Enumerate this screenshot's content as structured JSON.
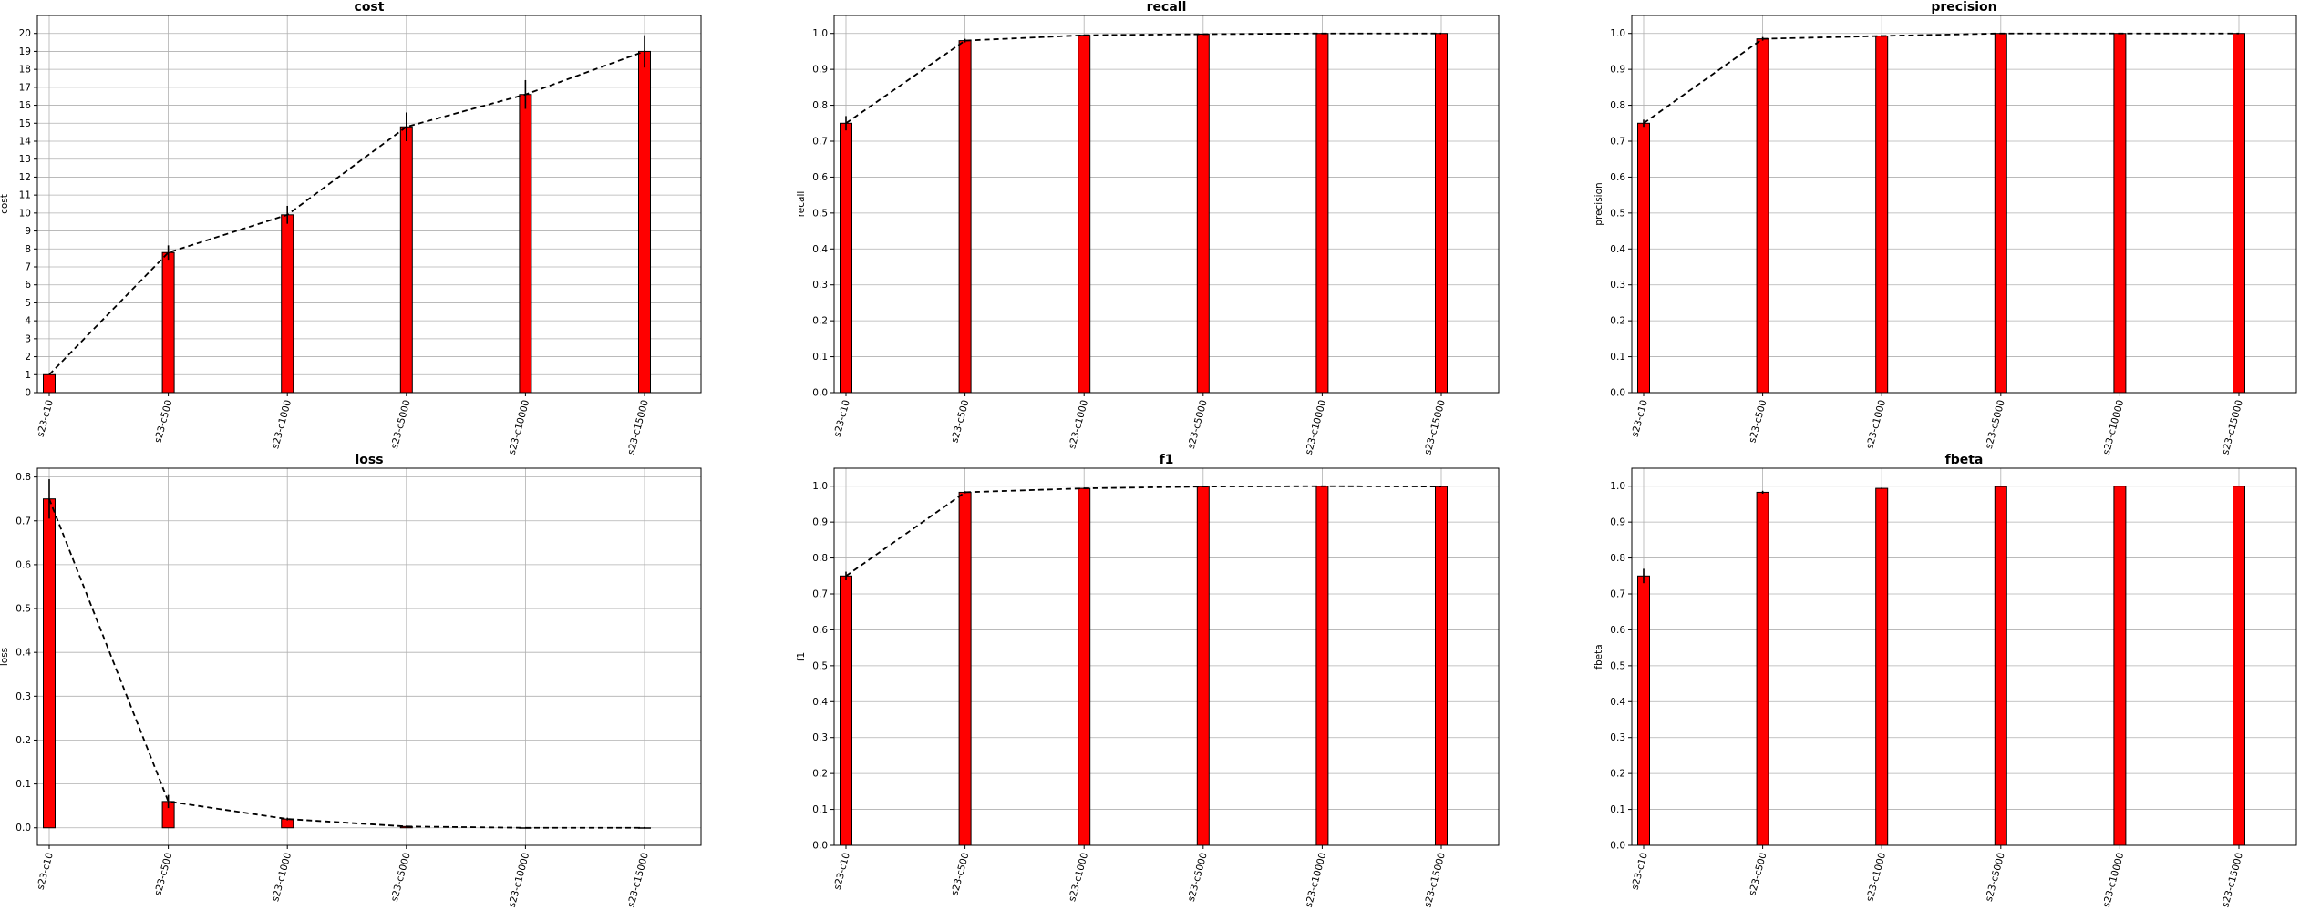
{
  "figure": {
    "categories": [
      "s23-c10",
      "s23-c500",
      "s23-c1000",
      "s23-c5000",
      "s23-c10000",
      "s23-c15000"
    ],
    "bar_color": "#ff0000",
    "line_color": "#000000",
    "grid_color": "#b0b0b0"
  },
  "chart_data": [
    {
      "type": "bar",
      "title": "cost",
      "xlabel": "",
      "ylabel": "cost",
      "categories": [
        "s23-c10",
        "s23-c500",
        "s23-c1000",
        "s23-c5000",
        "s23-c10000",
        "s23-c15000"
      ],
      "values": [
        1.0,
        7.8,
        9.9,
        14.8,
        16.6,
        19.0
      ],
      "errors": [
        0.0,
        0.4,
        0.5,
        0.8,
        0.8,
        0.9
      ],
      "ylim": [
        0,
        21
      ],
      "yticks": [
        0,
        1,
        2,
        3,
        4,
        5,
        6,
        7,
        8,
        9,
        10,
        11,
        12,
        13,
        14,
        15,
        16,
        17,
        18,
        19,
        20
      ],
      "ytick_labels": [
        "0",
        "1",
        "2",
        "3",
        "4",
        "5",
        "6",
        "7",
        "8",
        "9",
        "10",
        "11",
        "12",
        "13",
        "14",
        "15",
        "16",
        "17",
        "18",
        "19",
        "20"
      ],
      "trend_line": true,
      "grid": true
    },
    {
      "type": "bar",
      "title": "recall",
      "xlabel": "",
      "ylabel": "recall",
      "categories": [
        "s23-c10",
        "s23-c500",
        "s23-c1000",
        "s23-c5000",
        "s23-c10000",
        "s23-c15000"
      ],
      "values": [
        0.75,
        0.98,
        0.995,
        0.998,
        1.0,
        1.0
      ],
      "errors": [
        0.02,
        0.005,
        0.002,
        0.001,
        0.0,
        0.0
      ],
      "ylim": [
        0,
        1.05
      ],
      "yticks": [
        0,
        0.1,
        0.2,
        0.3,
        0.4,
        0.5,
        0.6,
        0.7,
        0.8,
        0.9,
        1.0
      ],
      "ytick_labels": [
        "0.0",
        "0.1",
        "0.2",
        "0.3",
        "0.4",
        "0.5",
        "0.6",
        "0.7",
        "0.8",
        "0.9",
        "1.0"
      ],
      "trend_line": true,
      "grid": true
    },
    {
      "type": "bar",
      "title": "precision",
      "xlabel": "",
      "ylabel": "precision",
      "categories": [
        "s23-c10",
        "s23-c500",
        "s23-c1000",
        "s23-c5000",
        "s23-c10000",
        "s23-c15000"
      ],
      "values": [
        0.75,
        0.985,
        0.993,
        1.0,
        1.0,
        1.0
      ],
      "errors": [
        0.01,
        0.005,
        0.003,
        0.0,
        0.0,
        0.0
      ],
      "ylim": [
        0,
        1.05
      ],
      "yticks": [
        0,
        0.1,
        0.2,
        0.3,
        0.4,
        0.5,
        0.6,
        0.7,
        0.8,
        0.9,
        1.0
      ],
      "ytick_labels": [
        "0.0",
        "0.1",
        "0.2",
        "0.3",
        "0.4",
        "0.5",
        "0.6",
        "0.7",
        "0.8",
        "0.9",
        "1.0"
      ],
      "trend_line": true,
      "grid": true
    },
    {
      "type": "bar",
      "title": "loss",
      "xlabel": "",
      "ylabel": "loss",
      "categories": [
        "s23-c10",
        "s23-c500",
        "s23-c1000",
        "s23-c5000",
        "s23-c10000",
        "s23-c15000"
      ],
      "values": [
        0.75,
        0.06,
        0.02,
        0.003,
        0.0,
        0.0
      ],
      "errors": [
        0.045,
        0.015,
        0.003,
        0.002,
        0.0,
        0.0
      ],
      "ylim": [
        -0.04,
        0.82
      ],
      "yticks": [
        0,
        0.1,
        0.2,
        0.3,
        0.4,
        0.5,
        0.6,
        0.7,
        0.8
      ],
      "ytick_labels": [
        "0.0",
        "0.1",
        "0.2",
        "0.3",
        "0.4",
        "0.5",
        "0.6",
        "0.7",
        "0.8"
      ],
      "trend_line": true,
      "grid": true
    },
    {
      "type": "bar",
      "title": "f1",
      "xlabel": "",
      "ylabel": "f1",
      "categories": [
        "s23-c10",
        "s23-c500",
        "s23-c1000",
        "s23-c5000",
        "s23-c10000",
        "s23-c15000"
      ],
      "values": [
        0.75,
        0.983,
        0.994,
        0.999,
        1.0,
        0.999
      ],
      "errors": [
        0.012,
        0.003,
        0.002,
        0.001,
        0.0,
        0.0
      ],
      "ylim": [
        0,
        1.05
      ],
      "yticks": [
        0,
        0.1,
        0.2,
        0.3,
        0.4,
        0.5,
        0.6,
        0.7,
        0.8,
        0.9,
        1.0
      ],
      "ytick_labels": [
        "0.0",
        "0.1",
        "0.2",
        "0.3",
        "0.4",
        "0.5",
        "0.6",
        "0.7",
        "0.8",
        "0.9",
        "1.0"
      ],
      "trend_line": true,
      "grid": true
    },
    {
      "type": "bar",
      "title": "fbeta",
      "xlabel": "",
      "ylabel": "fbeta",
      "categories": [
        "s23-c10",
        "s23-c500",
        "s23-c1000",
        "s23-c5000",
        "s23-c10000",
        "s23-c15000"
      ],
      "values": [
        0.75,
        0.983,
        0.994,
        0.999,
        1.0,
        1.0
      ],
      "errors": [
        0.02,
        0.004,
        0.002,
        0.001,
        0.0,
        0.0
      ],
      "ylim": [
        0,
        1.05
      ],
      "yticks": [
        0,
        0.1,
        0.2,
        0.3,
        0.4,
        0.5,
        0.6,
        0.7,
        0.8,
        0.9,
        1.0
      ],
      "ytick_labels": [
        "0.0",
        "0.1",
        "0.2",
        "0.3",
        "0.4",
        "0.5",
        "0.6",
        "0.7",
        "0.8",
        "0.9",
        "1.0"
      ],
      "trend_line": false,
      "grid": true
    }
  ]
}
